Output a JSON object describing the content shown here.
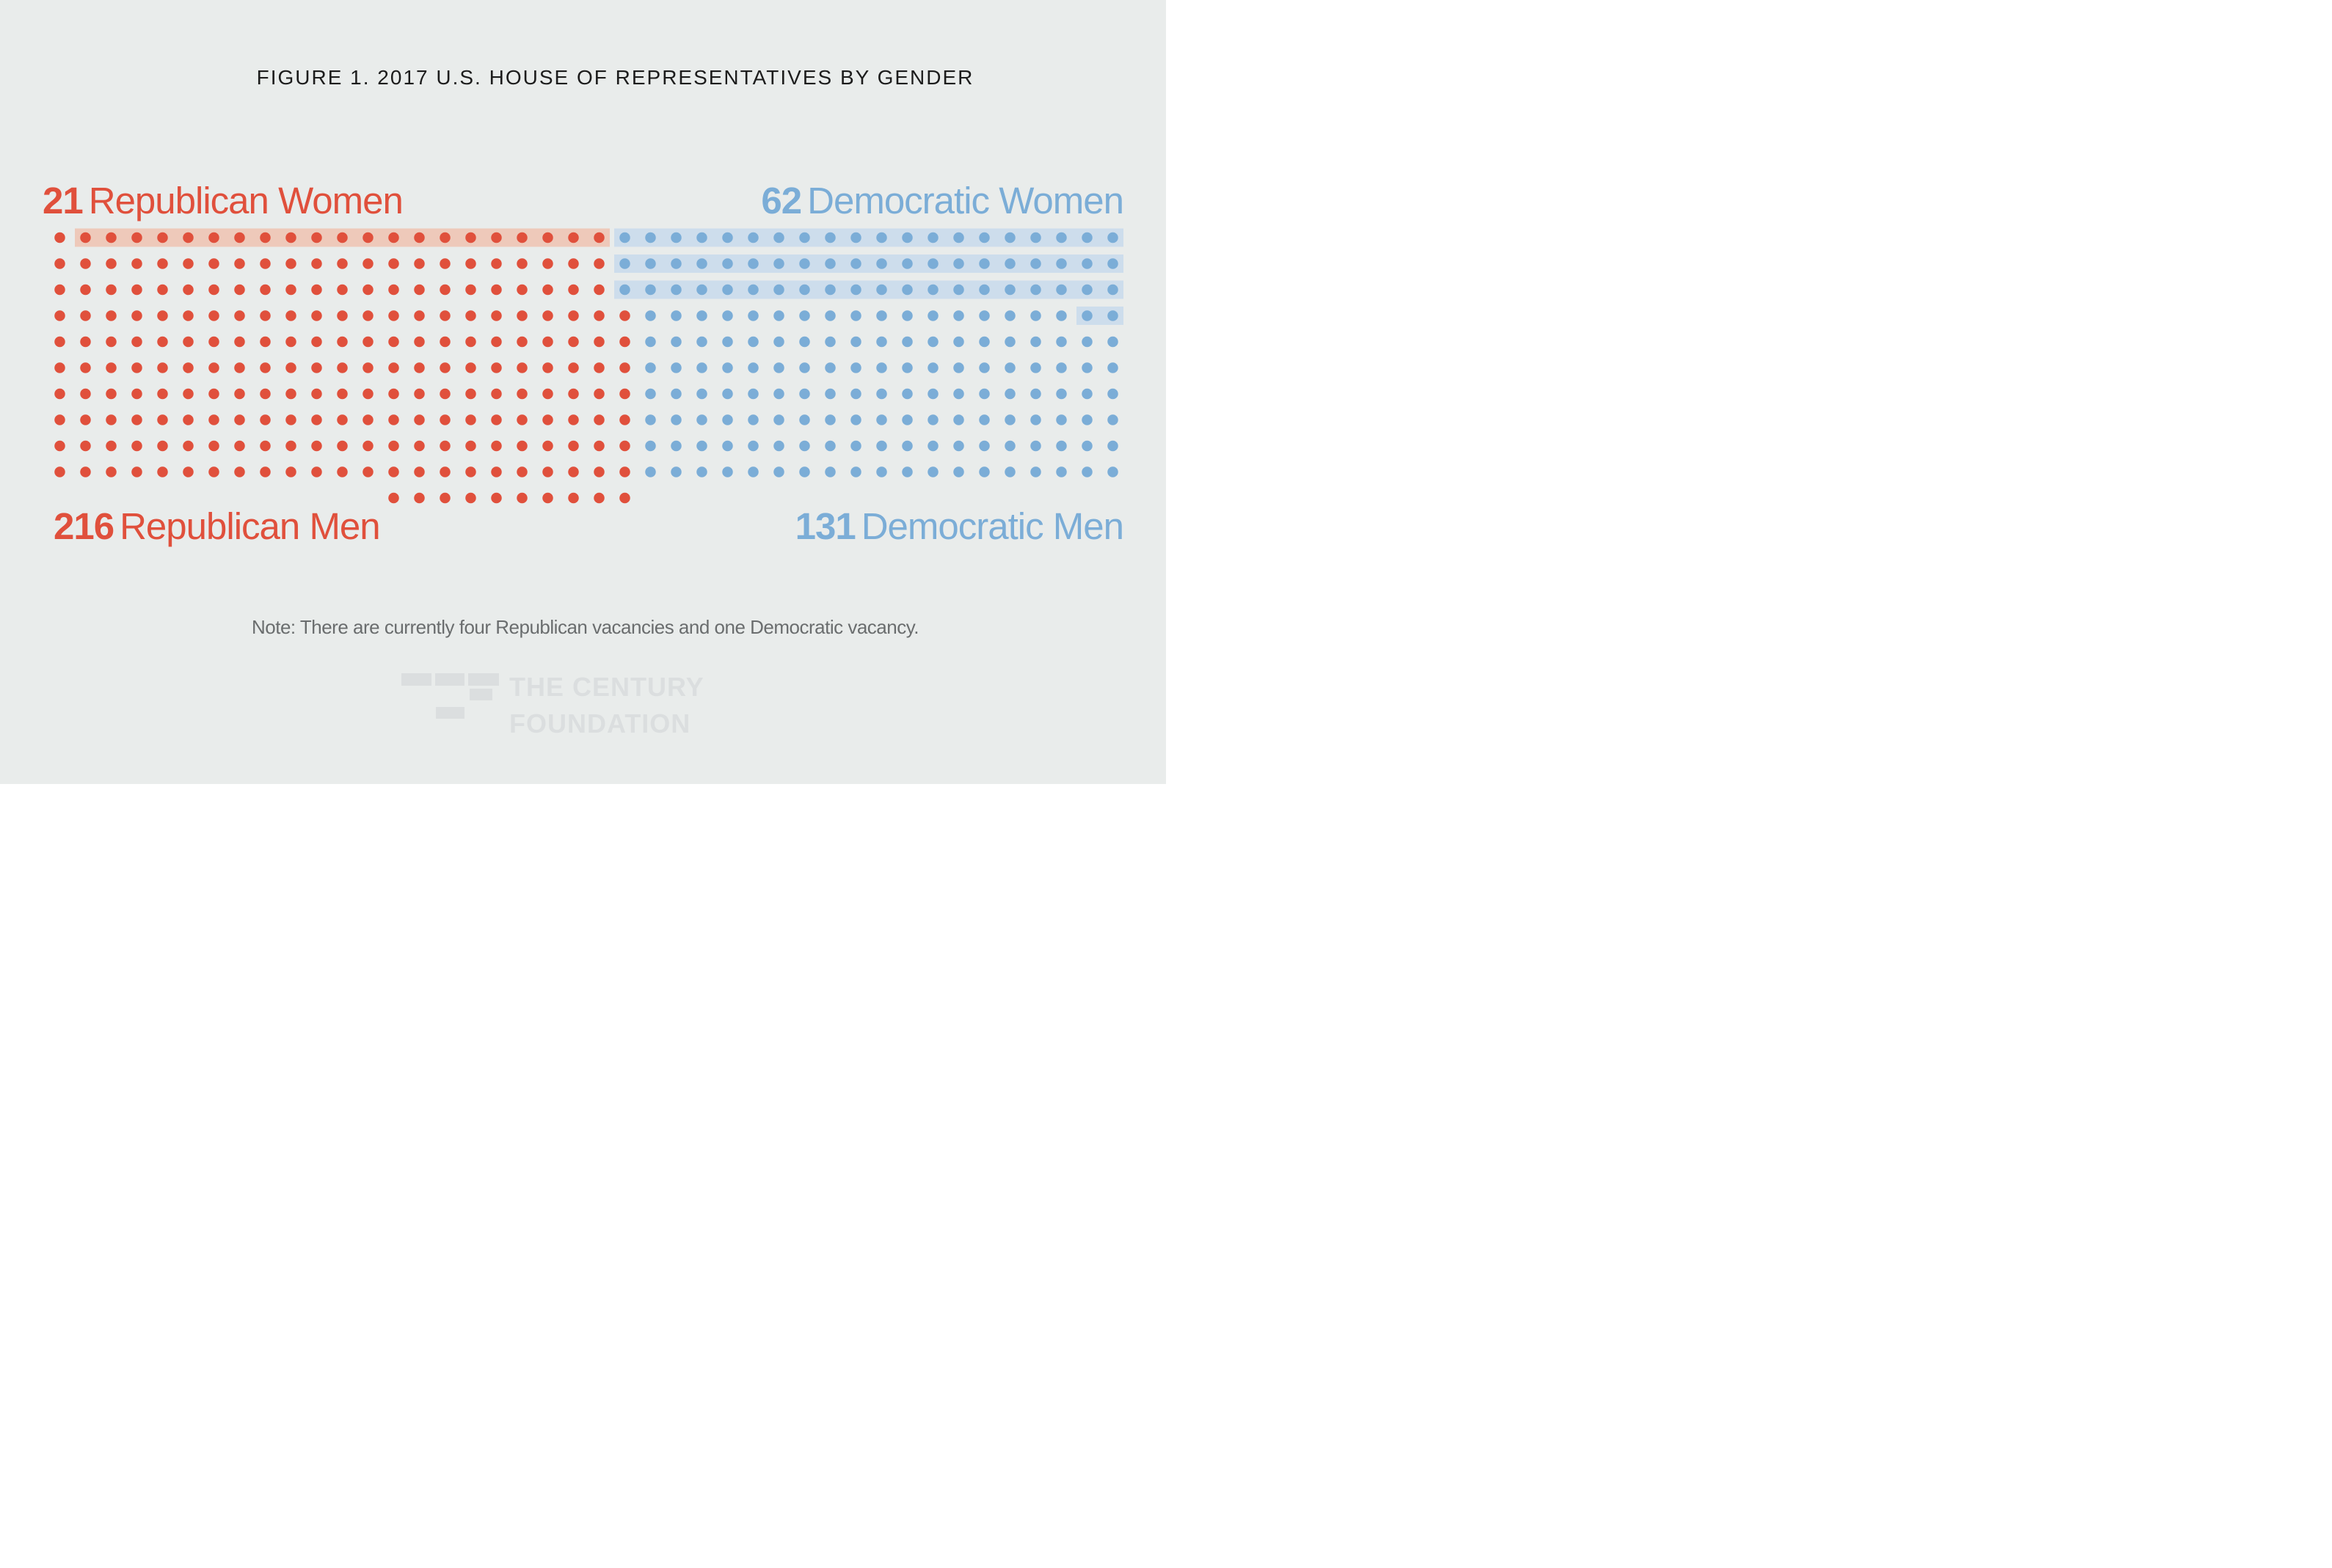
{
  "figure": {
    "title": "FIGURE 1. 2017 U.S. HOUSE OF REPRESENTATIVES BY GENDER",
    "note": "Note: There are currently four Republican vacancies and one Democratic vacancy."
  },
  "labels": {
    "republican_women": {
      "value": "21",
      "text": "Republican Women"
    },
    "democratic_women": {
      "value": "62",
      "text": "Democratic Women"
    },
    "republican_men": {
      "value": "216",
      "text": "Republican Men"
    },
    "democratic_men": {
      "value": "131",
      "text": "Democratic Men"
    }
  },
  "colors": {
    "background": "#e9eceb",
    "republican": "#e0503c",
    "republican_highlight": "#eec9ba",
    "democrat": "#7badd7",
    "democrat_highlight": "#cdddec",
    "title_text": "#1c1c1c",
    "note_text": "#6a6d6e",
    "logo": "#dbdedf"
  },
  "logo": {
    "line1": "THE CENTURY",
    "line2": "FOUNDATION"
  },
  "chart_data": {
    "type": "waffle-dot",
    "title": "FIGURE 1. 2017 U.S. HOUSE OF REPRESENTATIVES BY GENDER",
    "note": "Note: There are currently four Republican vacancies and one Democratic vacancy.",
    "series": [
      {
        "name": "Republican Women",
        "value": 21,
        "color": "#e0503c",
        "highlighted": true
      },
      {
        "name": "Republican Men",
        "value": 216,
        "color": "#e0503c",
        "highlighted": false
      },
      {
        "name": "Democratic Women",
        "value": 62,
        "color": "#7badd7",
        "highlighted": true
      },
      {
        "name": "Democratic Men",
        "value": 131,
        "color": "#7badd7",
        "highlighted": false
      }
    ],
    "total_seats_shown": 430,
    "total_columns": 42,
    "rows": [
      {
        "row": 1,
        "red": [
          1,
          22
        ],
        "blue": [
          23,
          42
        ],
        "red_band": [
          2,
          22
        ],
        "blue_band": [
          23,
          42
        ]
      },
      {
        "row": 2,
        "red": [
          1,
          22
        ],
        "blue": [
          23,
          42
        ],
        "blue_band": [
          23,
          42
        ]
      },
      {
        "row": 3,
        "red": [
          1,
          22
        ],
        "blue": [
          23,
          42
        ],
        "blue_band": [
          23,
          42
        ]
      },
      {
        "row": 4,
        "red": [
          1,
          23
        ],
        "blue": [
          24,
          42
        ],
        "blue_band": [
          41,
          42
        ]
      },
      {
        "row": 5,
        "red": [
          1,
          23
        ],
        "blue": [
          24,
          42
        ]
      },
      {
        "row": 6,
        "red": [
          1,
          23
        ],
        "blue": [
          24,
          42
        ]
      },
      {
        "row": 7,
        "red": [
          1,
          23
        ],
        "blue": [
          24,
          42
        ]
      },
      {
        "row": 8,
        "red": [
          1,
          23
        ],
        "blue": [
          24,
          42
        ]
      },
      {
        "row": 9,
        "red": [
          1,
          23
        ],
        "blue": [
          24,
          42
        ]
      },
      {
        "row": 10,
        "red": [
          1,
          23
        ],
        "blue": [
          24,
          42
        ]
      },
      {
        "row": 11,
        "red": [
          14,
          23
        ]
      }
    ]
  }
}
